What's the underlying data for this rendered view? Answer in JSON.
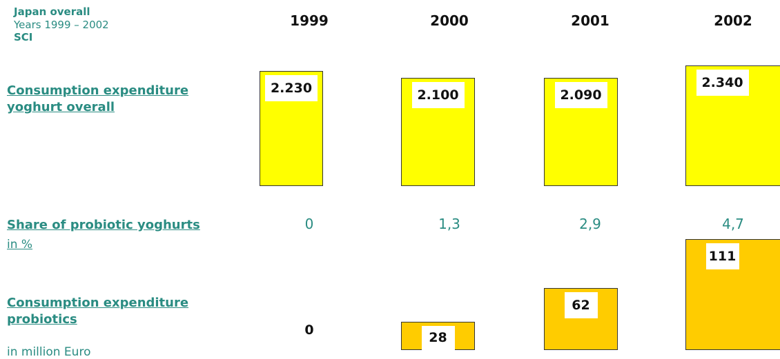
{
  "header": {
    "title": "Japan overall",
    "subtitle": "Years 1999 – 2002",
    "source": "SCI"
  },
  "years": [
    "1999",
    "2000",
    "2001",
    "2002"
  ],
  "rows": [
    {
      "label": "Consumption expenditure yoghurt overall",
      "values": [
        2230,
        2100,
        2090,
        2340
      ],
      "value_labels": [
        "2.230",
        "2.100",
        "2.090",
        "2.340"
      ],
      "color": "#ffff00"
    },
    {
      "label": "Share of probiotic yoghurts",
      "unit": "in %",
      "values": [
        0,
        1.3,
        2.9,
        4.7
      ],
      "value_labels": [
        "0",
        "1,3",
        "2,9",
        "4,7"
      ]
    },
    {
      "label": "Consumption expenditure probiotics",
      "unit": "in million Euro",
      "values": [
        0,
        28,
        62,
        111
      ],
      "color": "#ffcc00"
    }
  ]
}
